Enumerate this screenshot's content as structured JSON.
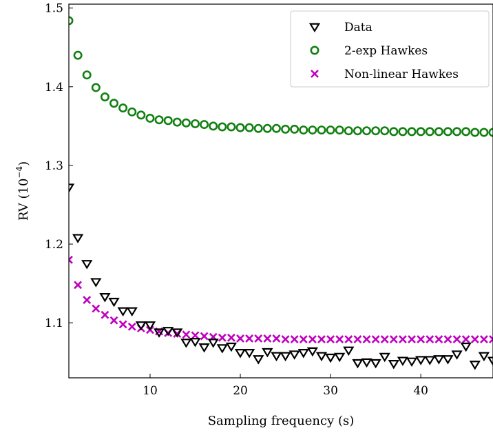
{
  "chart_data": {
    "type": "scatter",
    "xlabel": "Sampling frequency (s)",
    "ylabel_main": "RV (10",
    "ylabel_exp": "−4",
    "ylabel_close": ")",
    "xlim": [
      1,
      48
    ],
    "ylim": [
      1.03,
      1.505
    ],
    "xticks": [
      10,
      20,
      30,
      40
    ],
    "yticks": [
      1.1,
      1.2,
      1.3,
      1.4,
      1.5
    ],
    "ytick_labels": [
      "1.1",
      "1.2",
      "1.3",
      "1.4",
      "1.5"
    ],
    "legend_position": "top-right",
    "x": [
      1,
      2,
      3,
      4,
      5,
      6,
      7,
      8,
      9,
      10,
      11,
      12,
      13,
      14,
      15,
      16,
      17,
      18,
      19,
      20,
      21,
      22,
      23,
      24,
      25,
      26,
      27,
      28,
      29,
      30,
      31,
      32,
      33,
      34,
      35,
      36,
      37,
      38,
      39,
      40,
      41,
      42,
      43,
      44,
      45,
      46,
      47,
      48
    ],
    "series": [
      {
        "name": "Data",
        "marker": "triangle-down",
        "color": "#000000",
        "values": [
          1.272,
          1.208,
          1.175,
          1.152,
          1.133,
          1.127,
          1.115,
          1.115,
          1.097,
          1.097,
          1.088,
          1.09,
          1.088,
          1.075,
          1.076,
          1.069,
          1.075,
          1.068,
          1.07,
          1.062,
          1.062,
          1.054,
          1.063,
          1.058,
          1.058,
          1.06,
          1.062,
          1.064,
          1.058,
          1.056,
          1.057,
          1.065,
          1.049,
          1.05,
          1.049,
          1.057,
          1.048,
          1.052,
          1.051,
          1.053,
          1.053,
          1.054,
          1.054,
          1.06,
          1.07,
          1.047,
          1.058,
          1.052
        ]
      },
      {
        "name": "2-exp Hawkes",
        "marker": "circle",
        "color": "#118011",
        "values": [
          1.484,
          1.44,
          1.415,
          1.399,
          1.387,
          1.379,
          1.373,
          1.368,
          1.364,
          1.36,
          1.358,
          1.357,
          1.355,
          1.354,
          1.353,
          1.352,
          1.35,
          1.349,
          1.349,
          1.348,
          1.348,
          1.347,
          1.347,
          1.347,
          1.346,
          1.346,
          1.345,
          1.345,
          1.345,
          1.345,
          1.345,
          1.344,
          1.344,
          1.344,
          1.344,
          1.344,
          1.343,
          1.343,
          1.343,
          1.343,
          1.343,
          1.343,
          1.343,
          1.343,
          1.343,
          1.342,
          1.342,
          1.342
        ]
      },
      {
        "name": "Non-linear Hawkes",
        "marker": "x",
        "color": "#bf00bf",
        "values": [
          1.18,
          1.148,
          1.129,
          1.118,
          1.11,
          1.103,
          1.098,
          1.095,
          1.093,
          1.091,
          1.089,
          1.087,
          1.086,
          1.085,
          1.084,
          1.083,
          1.082,
          1.081,
          1.081,
          1.08,
          1.08,
          1.08,
          1.08,
          1.08,
          1.079,
          1.079,
          1.079,
          1.079,
          1.079,
          1.079,
          1.079,
          1.079,
          1.079,
          1.079,
          1.079,
          1.079,
          1.079,
          1.079,
          1.079,
          1.079,
          1.079,
          1.079,
          1.079,
          1.079,
          1.079,
          1.079,
          1.079,
          1.079
        ]
      }
    ]
  }
}
